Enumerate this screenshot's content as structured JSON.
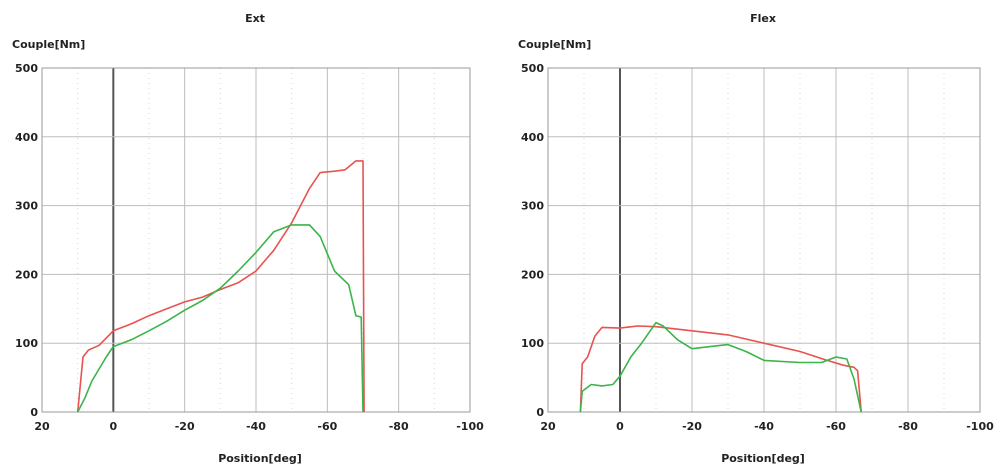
{
  "chart_data": [
    {
      "type": "line",
      "title": "Ext",
      "ylabel": "Couple[Nm]",
      "xlabel": "Position[deg]",
      "xlim": [
        20,
        -100
      ],
      "ylim": [
        0,
        500
      ],
      "x_ticks": [
        "20",
        "0",
        "-20",
        "-40",
        "-60",
        "-80",
        "-100"
      ],
      "y_ticks": [
        "0",
        "100",
        "200",
        "300",
        "400",
        "500"
      ],
      "grid": true,
      "series": [
        {
          "color": "#e8534f",
          "points": [
            [
              10,
              0
            ],
            [
              8.5,
              80
            ],
            [
              7,
              90
            ],
            [
              4,
              97
            ],
            [
              0,
              118
            ],
            [
              -5,
              128
            ],
            [
              -10,
              140
            ],
            [
              -15,
              150
            ],
            [
              -20,
              160
            ],
            [
              -25,
              167
            ],
            [
              -30,
              178
            ],
            [
              -35,
              188
            ],
            [
              -40,
              205
            ],
            [
              -45,
              235
            ],
            [
              -50,
              275
            ],
            [
              -55,
              325
            ],
            [
              -58,
              348
            ],
            [
              -62,
              350
            ],
            [
              -65,
              352
            ],
            [
              -68,
              365
            ],
            [
              -70,
              365
            ],
            [
              -70.3,
              0
            ]
          ]
        },
        {
          "color": "#3bb44a",
          "points": [
            [
              10,
              0
            ],
            [
              8,
              20
            ],
            [
              6,
              45
            ],
            [
              2,
              80
            ],
            [
              0,
              95
            ],
            [
              -5,
              105
            ],
            [
              -10,
              118
            ],
            [
              -15,
              132
            ],
            [
              -20,
              148
            ],
            [
              -25,
              162
            ],
            [
              -30,
              180
            ],
            [
              -35,
              205
            ],
            [
              -40,
              232
            ],
            [
              -45,
              262
            ],
            [
              -50,
              272
            ],
            [
              -55,
              272
            ],
            [
              -58,
              255
            ],
            [
              -62,
              205
            ],
            [
              -66,
              185
            ],
            [
              -68,
              140
            ],
            [
              -69.5,
              138
            ],
            [
              -70,
              0
            ]
          ]
        }
      ]
    },
    {
      "type": "line",
      "title": "Flex",
      "ylabel": "Couple[Nm]",
      "xlabel": "Position[deg]",
      "xlim": [
        20,
        -100
      ],
      "ylim": [
        0,
        500
      ],
      "x_ticks": [
        "20",
        "0",
        "-20",
        "-40",
        "-60",
        "-80",
        "-100"
      ],
      "y_ticks": [
        "0",
        "100",
        "200",
        "300",
        "400",
        "500"
      ],
      "grid": true,
      "series": [
        {
          "color": "#e8534f",
          "points": [
            [
              11,
              0
            ],
            [
              10.5,
              70
            ],
            [
              9,
              80
            ],
            [
              7,
              110
            ],
            [
              5,
              123
            ],
            [
              0,
              122
            ],
            [
              -5,
              125
            ],
            [
              -10,
              124
            ],
            [
              -20,
              118
            ],
            [
              -30,
              112
            ],
            [
              -40,
              100
            ],
            [
              -50,
              88
            ],
            [
              -57,
              76
            ],
            [
              -62,
              68
            ],
            [
              -65,
              65
            ],
            [
              -66,
              60
            ],
            [
              -67,
              0
            ]
          ]
        },
        {
          "color": "#3bb44a",
          "points": [
            [
              11,
              0
            ],
            [
              10.5,
              30
            ],
            [
              8,
              40
            ],
            [
              5,
              38
            ],
            [
              2,
              40
            ],
            [
              0,
              52
            ],
            [
              -3,
              80
            ],
            [
              -6,
              100
            ],
            [
              -10,
              130
            ],
            [
              -12,
              125
            ],
            [
              -16,
              105
            ],
            [
              -20,
              92
            ],
            [
              -25,
              95
            ],
            [
              -30,
              98
            ],
            [
              -35,
              88
            ],
            [
              -40,
              75
            ],
            [
              -50,
              72
            ],
            [
              -56,
              72
            ],
            [
              -60,
              80
            ],
            [
              -63,
              77
            ],
            [
              -65,
              48
            ],
            [
              -67,
              0
            ]
          ]
        }
      ]
    }
  ]
}
